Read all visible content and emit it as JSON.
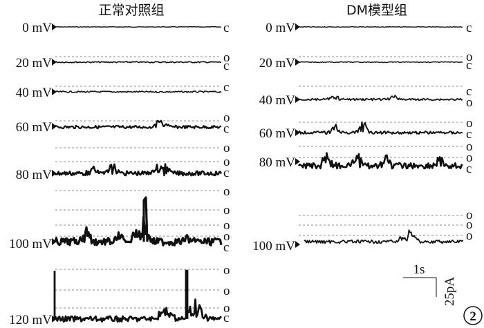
{
  "panels": [
    {
      "title": "正常对照组",
      "traces": [
        {
          "voltage": "0 mV",
          "states": [
            "c"
          ],
          "noise": 0.4,
          "bursts": 0
        },
        {
          "voltage": "20 mV",
          "states": [
            "o",
            "c"
          ],
          "noise": 0.9,
          "bursts": 0
        },
        {
          "voltage": "40 mV",
          "states": [
            "c"
          ],
          "noise": 1.1,
          "bursts": 0
        },
        {
          "voltage": "60 mV",
          "states": [
            "o",
            "c"
          ],
          "noise": 2.2,
          "bursts": 2
        },
        {
          "voltage": "80 mV",
          "states": [
            "o",
            "o",
            "c"
          ],
          "noise": 3.2,
          "bursts": 4
        },
        {
          "voltage": "100 mV",
          "states": [
            "o",
            "o",
            "o",
            "o",
            "c"
          ],
          "noise": 5.5,
          "bursts": 6
        },
        {
          "voltage": "120 mV",
          "states": [
            "o",
            "o",
            "o",
            "c"
          ],
          "noise": 4.0,
          "bursts": 5
        }
      ]
    },
    {
      "title": "DM模型组",
      "traces": [
        {
          "voltage": "0 mV",
          "states": [
            "c"
          ],
          "noise": 0.4,
          "bursts": 0
        },
        {
          "voltage": "20 mV",
          "states": [
            "o",
            "c"
          ],
          "noise": 0.6,
          "bursts": 0
        },
        {
          "voltage": "40 mV",
          "states": [
            "c",
            "o"
          ],
          "noise": 1.5,
          "bursts": 2
        },
        {
          "voltage": "60 mV",
          "states": [
            "o",
            "c"
          ],
          "noise": 2.0,
          "bursts": 3
        },
        {
          "voltage": "80 mV",
          "states": [
            "o",
            "o",
            "c"
          ],
          "noise": 4.5,
          "bursts": 4
        },
        {
          "voltage": "100 mV",
          "states": [
            "o",
            "o",
            "o"
          ],
          "noise": 2.4,
          "bursts": 3
        }
      ]
    }
  ],
  "scale_bar": {
    "time": "1s",
    "current": "25pA"
  },
  "figure_badge": "2",
  "colors": {
    "trace": "#111111",
    "dashed_level": "#8a8a8a"
  }
}
